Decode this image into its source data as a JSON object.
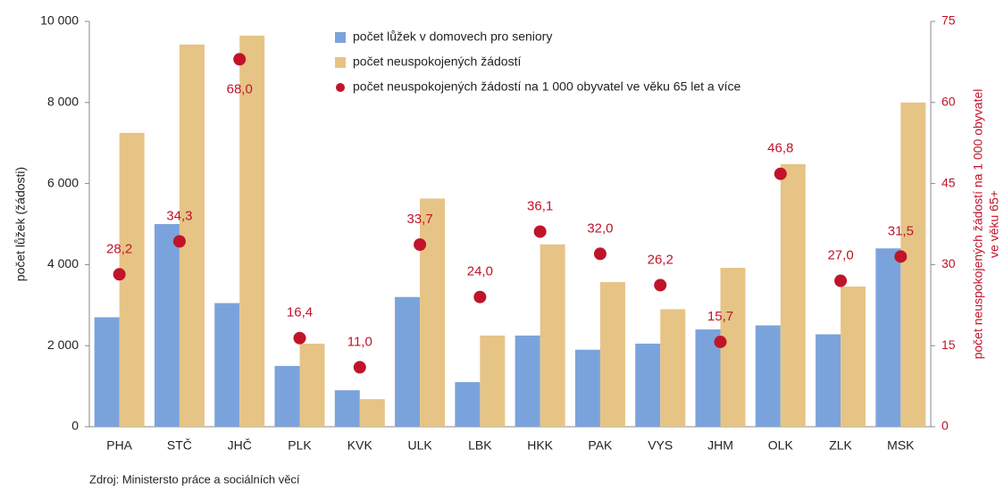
{
  "chart_data": {
    "type": "bar",
    "categories": [
      "PHA",
      "STČ",
      "JHČ",
      "PLK",
      "KVK",
      "ULK",
      "LBK",
      "HKK",
      "PAK",
      "VYS",
      "JHM",
      "OLK",
      "ZLK",
      "MSK"
    ],
    "series": [
      {
        "name": "počet lůžek v domovech pro seniory",
        "color": "#7ba3db",
        "type": "bar",
        "values": [
          2700,
          5000,
          3050,
          1500,
          900,
          3200,
          1100,
          2250,
          1900,
          2050,
          2400,
          2500,
          2280,
          4400
        ]
      },
      {
        "name": "počet neuspokojených žádostí",
        "color": "#e6c486",
        "type": "bar",
        "values": [
          7250,
          9430,
          9650,
          2050,
          680,
          5630,
          2250,
          4500,
          3570,
          2900,
          3920,
          6480,
          3460,
          8000
        ]
      },
      {
        "name": "počet neuspokojených žádostí na 1 000 obyvatel ve věku 65 let a více",
        "color": "#c0142a",
        "type": "scatter",
        "axis": "y2",
        "values": [
          28.2,
          34.3,
          68.0,
          16.4,
          11.0,
          33.7,
          24.0,
          36.1,
          32.0,
          26.2,
          15.7,
          46.8,
          27.0,
          31.5
        ],
        "value_labels": [
          "28,2",
          "34,3",
          "68,0",
          "16,4",
          "11,0",
          "33,7",
          "24,0",
          "36,1",
          "32,0",
          "26,2",
          "15,7",
          "46,8",
          "27,0",
          "31,5"
        ]
      }
    ],
    "ylabel": "počet lůžek (žádosti)",
    "y2label": [
      "počet neuspokojených žádostí na 1 000 obyvatel",
      "ve věku 65+"
    ],
    "ylim": [
      0,
      10000
    ],
    "yticks": [
      0,
      {
        "value": 2000,
        "label": "2 000"
      },
      {
        "value": 4000,
        "label": "4 000"
      },
      {
        "value": 6000,
        "label": "6 000"
      },
      {
        "value": 8000,
        "label": "8 000"
      },
      {
        "value": 10000,
        "label": "10 000"
      }
    ],
    "y2lim": [
      0,
      75
    ],
    "y2ticks": [
      0,
      15,
      30,
      45,
      60,
      75
    ],
    "grid": false,
    "legend": "top",
    "note": "Zdroj: Ministersto práce a sociálních věcí"
  }
}
